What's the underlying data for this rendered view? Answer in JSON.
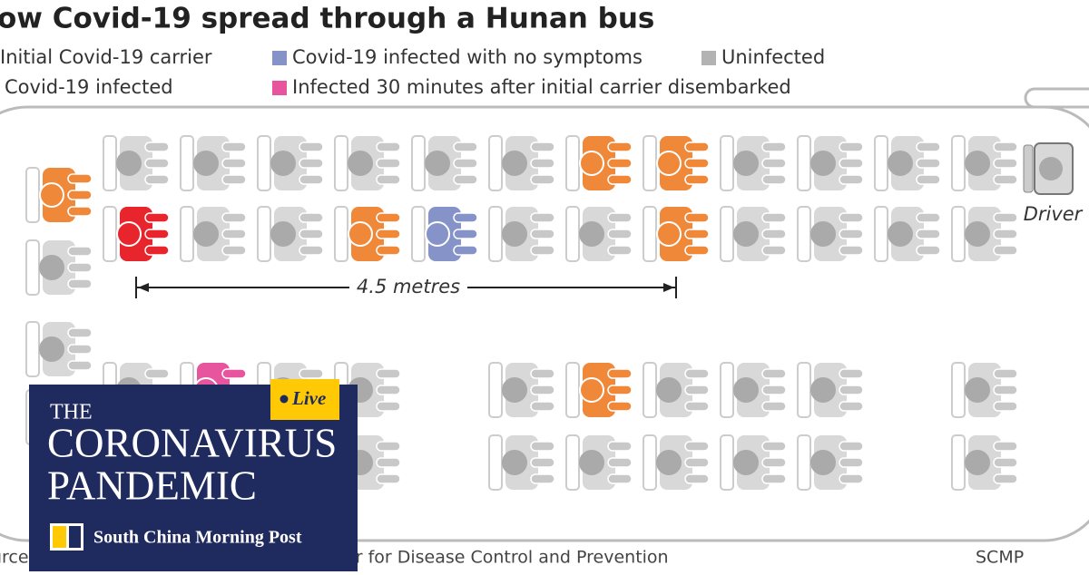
{
  "header": {
    "title": "ow Covid-19 spread through a Hunan bus"
  },
  "legend": [
    {
      "label": "Initial Covid-19 carrier",
      "color": "#e8242c"
    },
    {
      "label": "Covid-19 infected with no symptoms",
      "color": "#8593c9"
    },
    {
      "label": "Uninfected",
      "color": "#b3b3b3"
    },
    {
      "label": "Covid-19 infected",
      "color": "#f0883a"
    },
    {
      "label": "Infected 30 minutes after initial carrier disembarked",
      "color": "#e8559f"
    }
  ],
  "diagram": {
    "distance": "4.5 metres",
    "driver": "Driver",
    "source": "urce: Hu Shixiong, Hunan Provincial Center for Disease Control and Prevention",
    "credit": "SCMP"
  },
  "overlay": {
    "kicker": "THE",
    "line1": "CORONAVIRUS",
    "line2": "PANDEMIC",
    "badge": "Live",
    "brand": "South China Morning Post"
  }
}
